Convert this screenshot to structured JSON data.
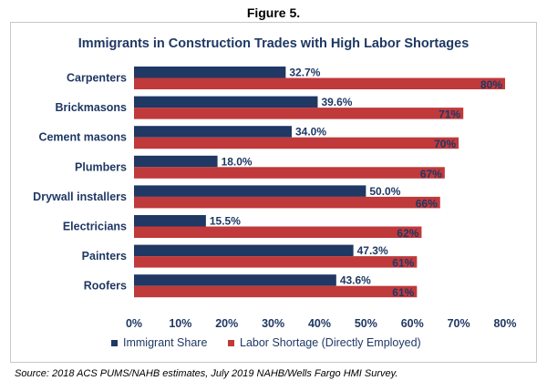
{
  "figure_label": "Figure 5.",
  "source_note": "Source: 2018 ACS PUMS/NAHB estimates, July 2019 NAHB/Wells Fargo HMI Survey.",
  "colors": {
    "immigrant": "#1f3864",
    "shortage": "#c0393b",
    "title": "#1f3864"
  },
  "chart_data": {
    "type": "bar",
    "orientation": "horizontal",
    "title": "Immigrants in Construction Trades with High Labor Shortages",
    "categories": [
      "Carpenters",
      "Brickmasons",
      "Cement masons",
      "Plumbers",
      "Drywall installers",
      "Electricians",
      "Painters",
      "Roofers"
    ],
    "series": [
      {
        "name": "Immigrant Share",
        "values": [
          32.7,
          39.6,
          34.0,
          18.0,
          50.0,
          15.5,
          47.3,
          43.6
        ],
        "labels": [
          "32.7%",
          "39.6%",
          "34.0%",
          "18.0%",
          "50.0%",
          "15.5%",
          "47.3%",
          "43.6%"
        ]
      },
      {
        "name": "Labor Shortage (Directly Employed)",
        "values": [
          80,
          71,
          70,
          67,
          66,
          62,
          61,
          61
        ],
        "labels": [
          "80%",
          "71%",
          "70%",
          "67%",
          "66%",
          "62%",
          "61%",
          "61%"
        ]
      }
    ],
    "xlim": [
      0,
      80
    ],
    "xticks": [
      0,
      10,
      20,
      30,
      40,
      50,
      60,
      70,
      80
    ],
    "xtick_labels": [
      "0%",
      "10%",
      "20%",
      "30%",
      "40%",
      "50%",
      "60%",
      "70%",
      "80%"
    ],
    "legend": "bottom",
    "grid": false
  }
}
